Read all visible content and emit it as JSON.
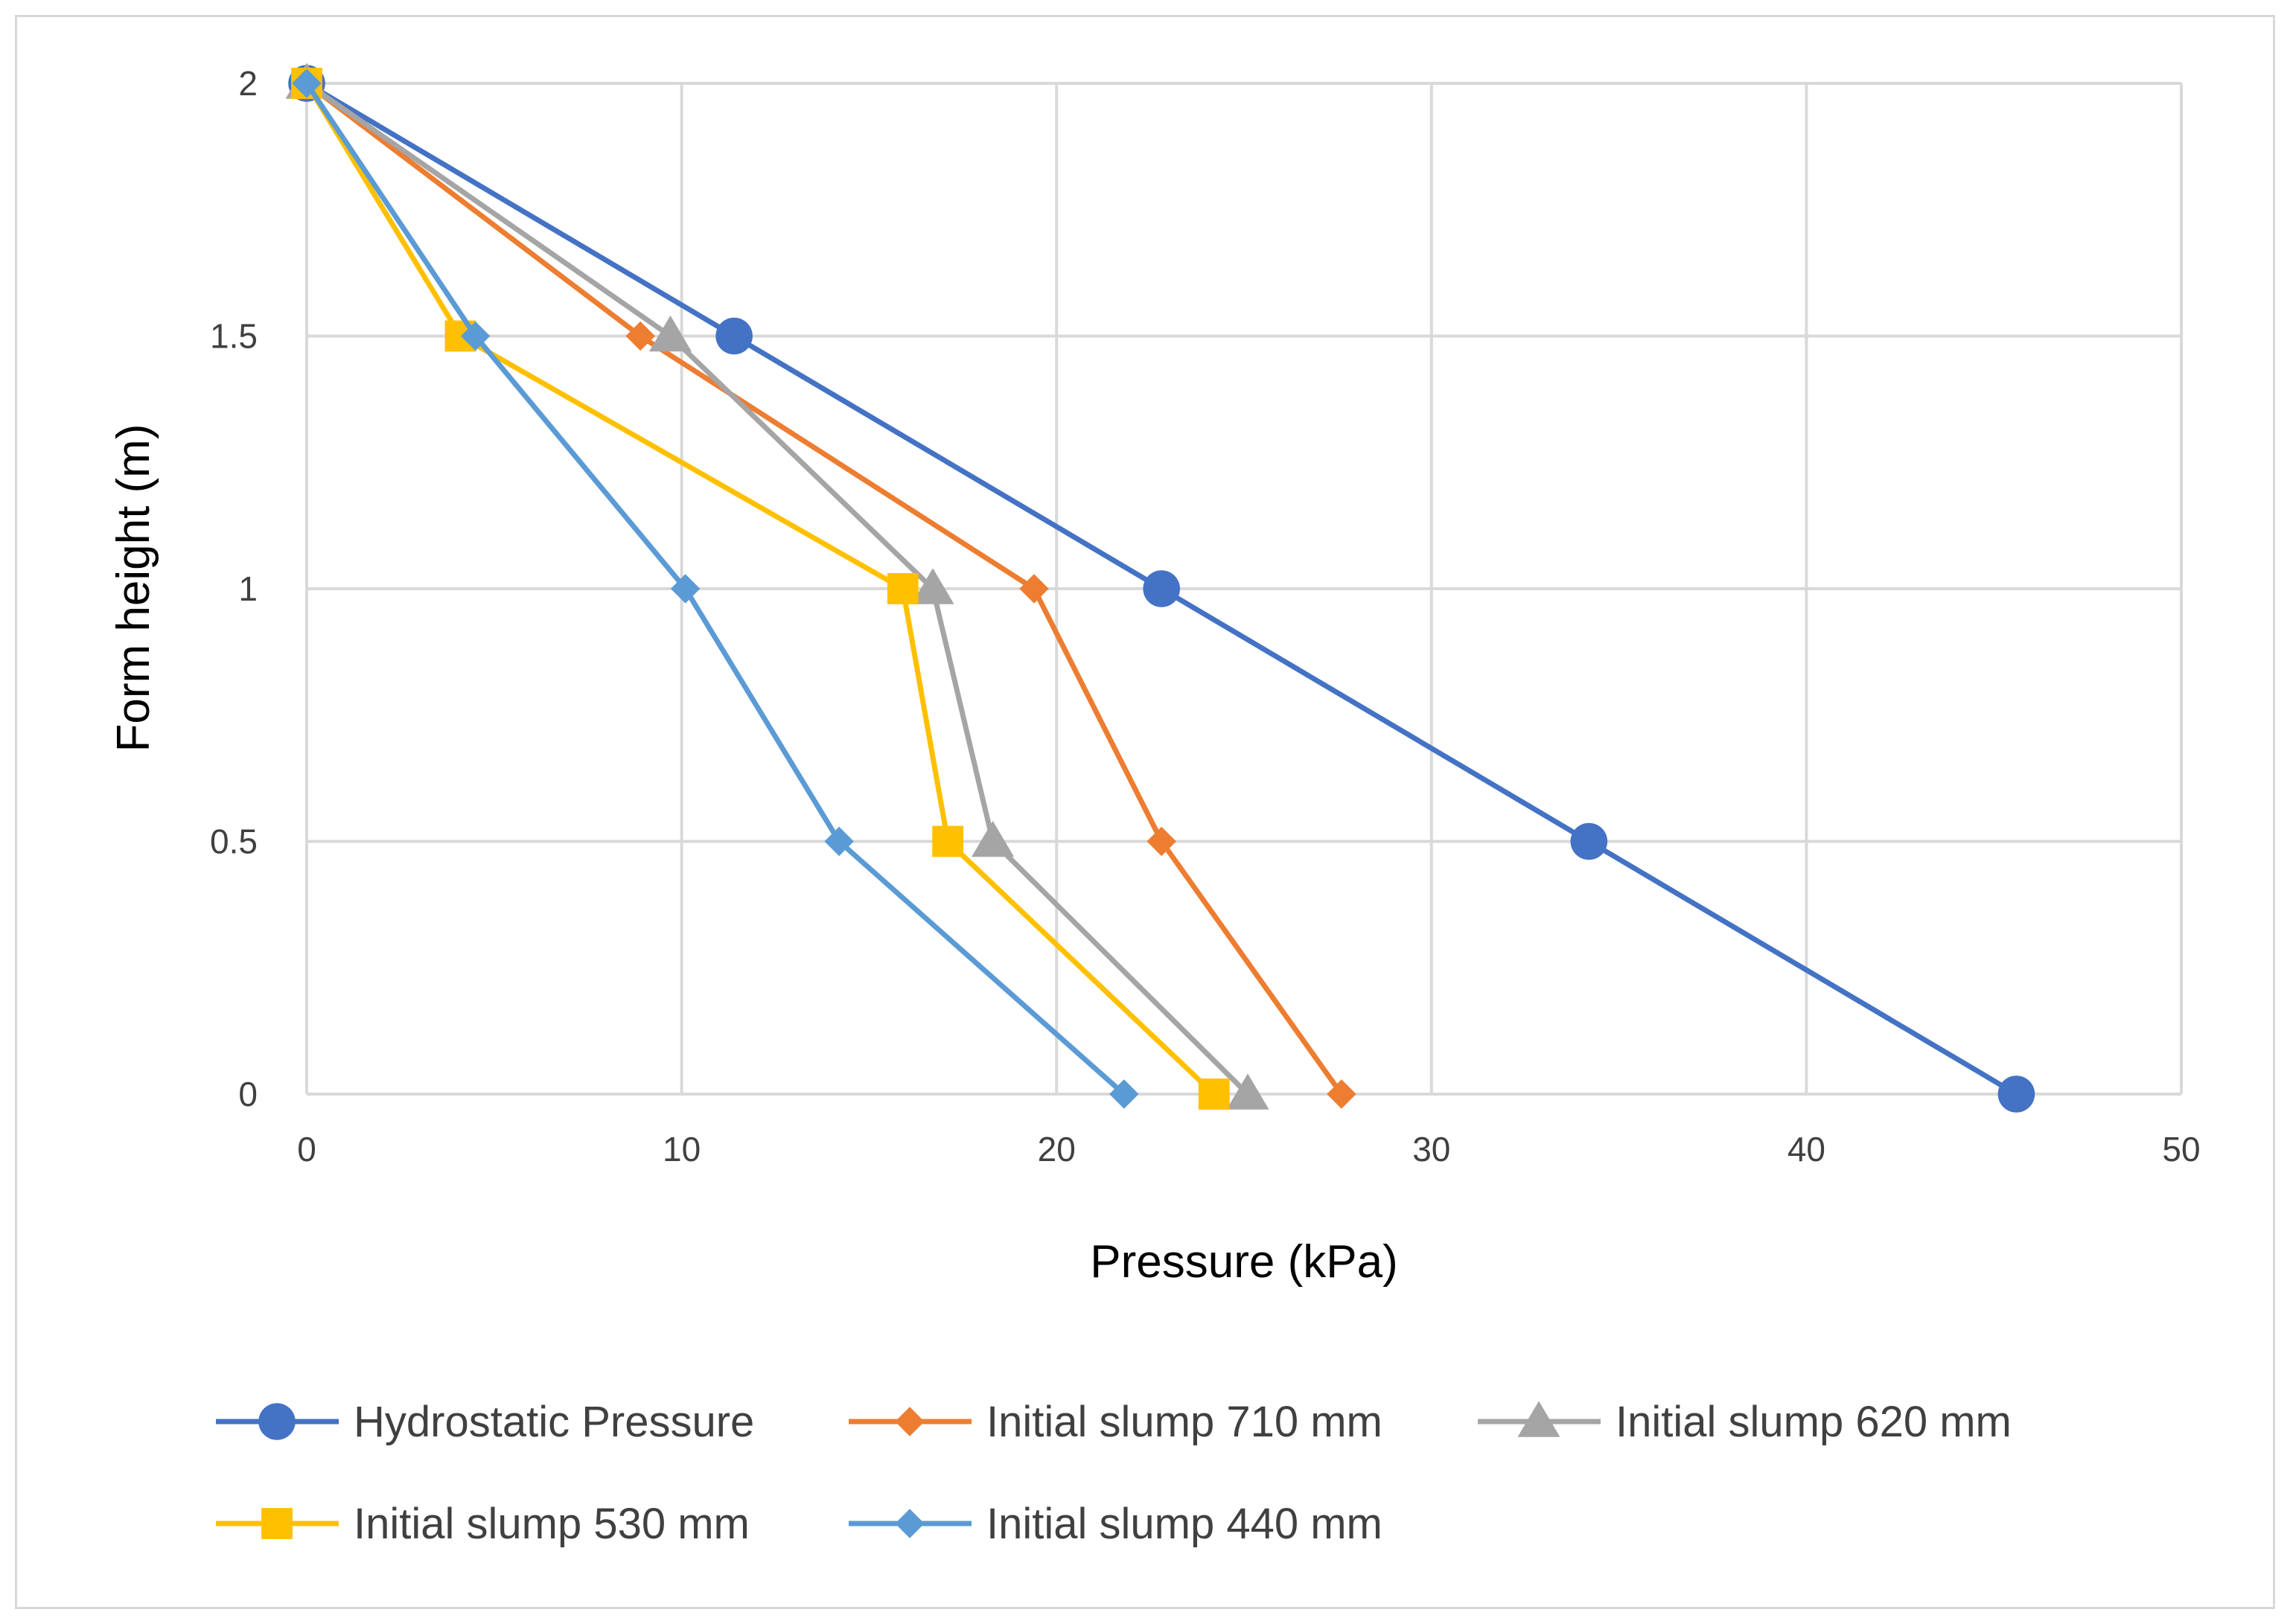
{
  "chart_data": {
    "type": "line",
    "title": "",
    "xlabel": "Pressure (kPa)",
    "ylabel": "Form height (m)",
    "xlim": [
      0,
      50
    ],
    "ylim": [
      0,
      2
    ],
    "xticks": [
      0,
      10,
      20,
      30,
      40,
      50
    ],
    "yticks": [
      0,
      0.5,
      1,
      1.5,
      2
    ],
    "xtick_labels": [
      "0",
      "10",
      "20",
      "30",
      "40",
      "50"
    ],
    "ytick_labels": [
      "0",
      "0.5",
      "1",
      "1.5",
      "2"
    ],
    "grid": true,
    "legend_position": "bottom",
    "series": [
      {
        "name": "Hydrostatic Pressure",
        "color": "#4472c4",
        "marker": "circle",
        "x": [
          0,
          11.4,
          22.8,
          34.2,
          45.6
        ],
        "y": [
          2,
          1.5,
          1,
          0.5,
          0
        ]
      },
      {
        "name": "Initial slump 710 mm",
        "color": "#ed7d31",
        "marker": "diamond",
        "x": [
          0,
          8.9,
          19.4,
          22.8,
          27.6
        ],
        "y": [
          2,
          1.5,
          1,
          0.5,
          0
        ]
      },
      {
        "name": "Initial slump 620 mm",
        "color": "#a5a5a5",
        "marker": "triangle",
        "x": [
          0,
          9.7,
          16.7,
          18.3,
          25.1
        ],
        "y": [
          2,
          1.5,
          1,
          0.5,
          0
        ]
      },
      {
        "name": "Initial slump 530 mm",
        "color": "#ffc000",
        "marker": "square",
        "x": [
          0,
          4.1,
          15.9,
          17.1,
          24.2
        ],
        "y": [
          2,
          1.5,
          1,
          0.5,
          0
        ]
      },
      {
        "name": "Initial slump 440 mm",
        "color": "#5b9bd5",
        "marker": "diamond",
        "x": [
          0,
          4.5,
          10.1,
          14.2,
          21.8
        ],
        "y": [
          2,
          1.5,
          1,
          0.5,
          0
        ]
      }
    ]
  }
}
